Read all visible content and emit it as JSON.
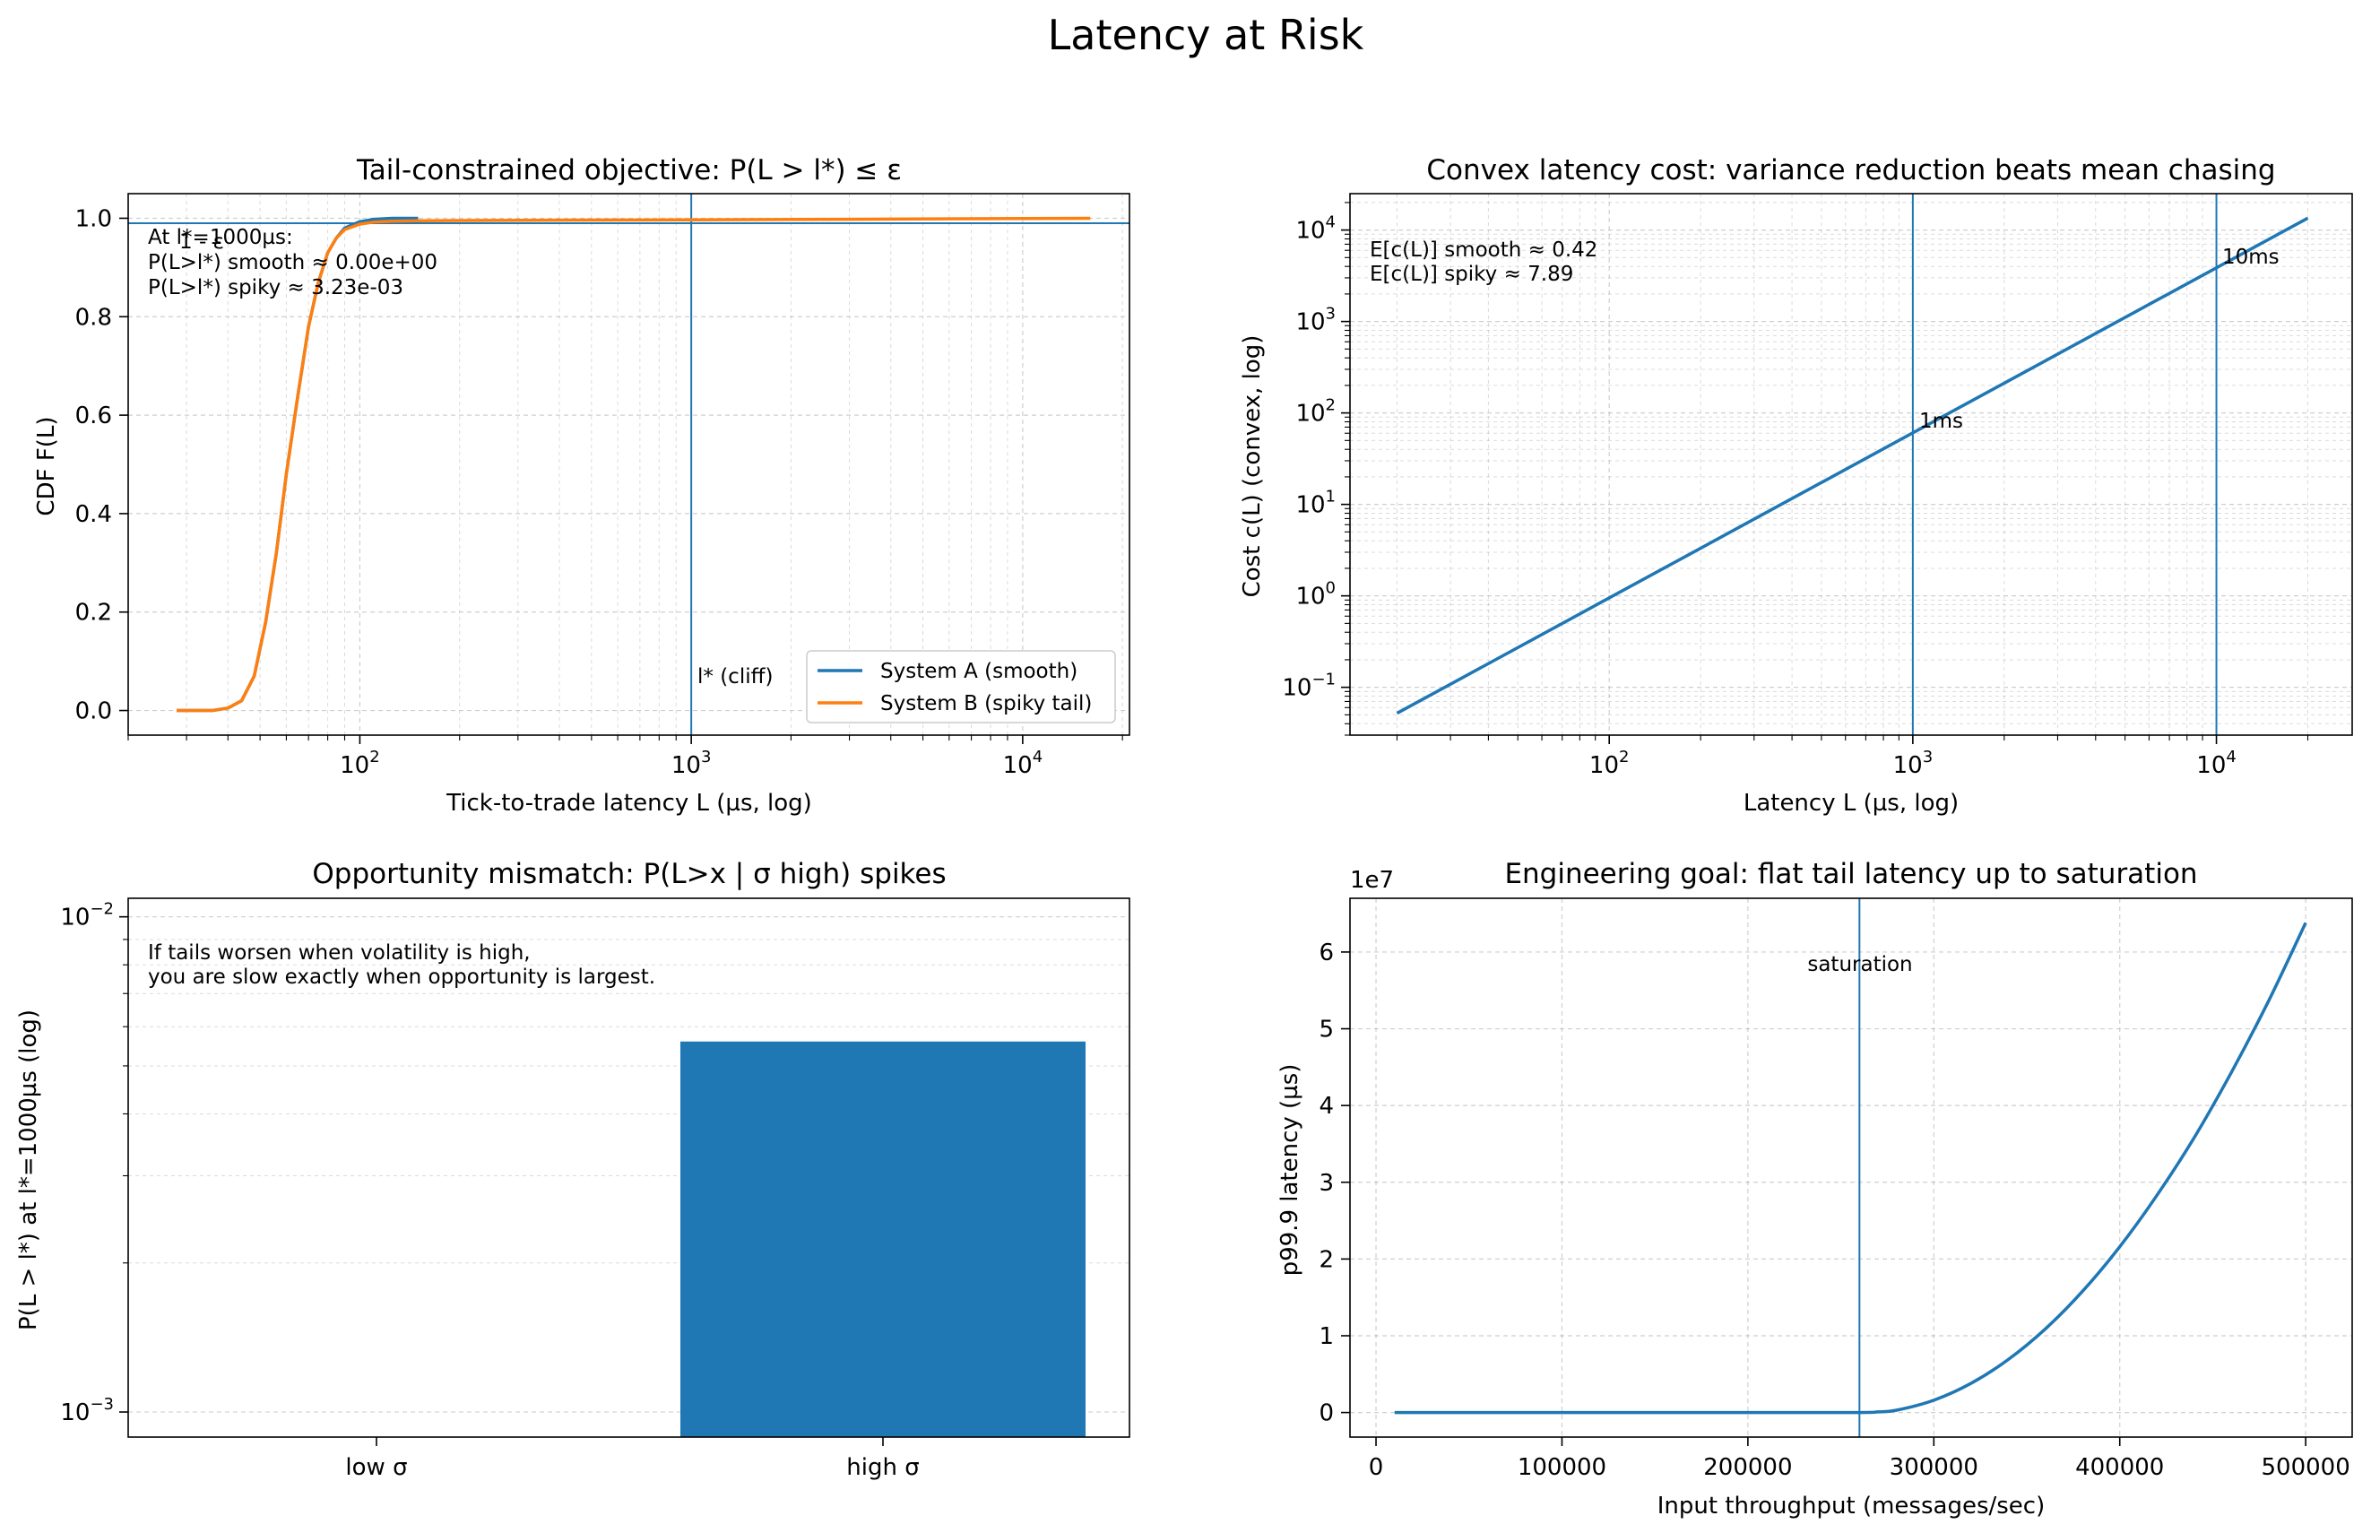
{
  "figure": {
    "title": "Latency at Risk"
  },
  "colors": {
    "blue": "#1f77b4",
    "orange": "#ff7f0e"
  },
  "chart_data": [
    {
      "id": "cdf",
      "type": "line",
      "title": "Tail-constrained objective:  P(L > l*) ≤ ε",
      "xlabel": "Tick-to-trade latency L (µs, log)",
      "ylabel": "CDF  F(L)",
      "xscale": "log",
      "xlim": [
        20,
        21000
      ],
      "ylim": [
        -0.05,
        1.05
      ],
      "yticks": [
        "0.0",
        "0.2",
        "0.4",
        "0.6",
        "0.8",
        "1.0"
      ],
      "xticks": [
        "10^2",
        "10^3",
        "10^4"
      ],
      "grid": true,
      "legend_position": "lower right",
      "series": [
        {
          "name": "System A (smooth)",
          "color": "#1f77b4",
          "x": [
            28,
            30,
            33,
            36,
            40,
            44,
            48,
            52,
            56,
            60,
            65,
            70,
            75,
            80,
            85,
            90,
            100,
            110,
            125,
            150
          ],
          "y": [
            0.0,
            0.0,
            0.0,
            0.0,
            0.005,
            0.02,
            0.07,
            0.18,
            0.32,
            0.48,
            0.64,
            0.78,
            0.87,
            0.93,
            0.96,
            0.98,
            0.993,
            0.998,
            1.0,
            1.0
          ]
        },
        {
          "name": "System B (spiky tail)",
          "color": "#ff7f0e",
          "x": [
            28,
            30,
            33,
            36,
            40,
            44,
            48,
            52,
            56,
            60,
            65,
            70,
            75,
            80,
            85,
            90,
            100,
            110,
            125,
            150,
            300,
            1000,
            3000,
            10000,
            16000
          ],
          "y": [
            0.0,
            0.0,
            0.0,
            0.0,
            0.005,
            0.02,
            0.07,
            0.18,
            0.32,
            0.48,
            0.64,
            0.78,
            0.87,
            0.93,
            0.96,
            0.977,
            0.988,
            0.992,
            0.994,
            0.995,
            0.996,
            0.9968,
            0.998,
            0.9995,
            1.0
          ]
        }
      ],
      "hline": {
        "y": 0.99,
        "label": "1 - ε"
      },
      "vline": {
        "x": 1000,
        "label": "l* (cliff)"
      },
      "annotation": [
        "At l*=1000µs:",
        "P(L>l*)  smooth ≈ 0.00e+00",
        "P(L>l*)  spiky  ≈ 3.23e-03"
      ]
    },
    {
      "id": "cost",
      "type": "line",
      "title": "Convex latency cost: variance reduction beats mean chasing",
      "xlabel": "Latency L (µs, log)",
      "ylabel": "Cost  c(L)  (convex, log)",
      "xscale": "log",
      "yscale": "log",
      "xlim": [
        14,
        28000
      ],
      "ylim": [
        0.03,
        25000
      ],
      "xticks": [
        "10^2",
        "10^3",
        "10^4"
      ],
      "yticks": [
        "10^-1",
        "10^0",
        "10^1",
        "10^2",
        "10^3",
        "10^4"
      ],
      "grid": true,
      "series": [
        {
          "name": "",
          "color": "#1f77b4",
          "x": [
            20,
            20000
          ],
          "y": [
            0.052,
            13500
          ]
        }
      ],
      "vlines": [
        {
          "x": 1000,
          "label": "1ms"
        },
        {
          "x": 10000,
          "label": "10ms"
        }
      ],
      "annotation": [
        "E[c(L)] smooth ≈ 0.42",
        "E[c(L)] spiky  ≈ 7.89"
      ]
    },
    {
      "id": "mismatch",
      "type": "bar",
      "title": "Opportunity mismatch: P(L>x | σ high) spikes",
      "ylabel": "P(L > l*)  at l*=1000µs (log)",
      "yscale": "log",
      "ylim": [
        0.00089,
        0.0109
      ],
      "yticks": [
        "10^-2",
        "10^-3"
      ],
      "categories": [
        "low σ",
        "high σ"
      ],
      "values": [
        0.0,
        0.0056
      ],
      "color": "#1f77b4",
      "grid": true,
      "annotation": [
        "If tails worsen when volatility is high,",
        "you are slow exactly when opportunity is largest."
      ]
    },
    {
      "id": "throughput",
      "type": "line",
      "title": "Engineering goal: flat tail latency up to saturation",
      "xlabel": "Input throughput (messages/sec)",
      "ylabel": "p99.9 latency (µs)",
      "offset_label": "1e7",
      "xlim": [
        -14000,
        525000
      ],
      "ylim": [
        -3200000,
        67000000
      ],
      "xticks": [
        "0",
        "100000",
        "200000",
        "300000",
        "400000",
        "500000"
      ],
      "yticks": [
        "0",
        "1",
        "2",
        "3",
        "4",
        "5",
        "6"
      ],
      "grid": true,
      "series": [
        {
          "name": "",
          "color": "#1f77b4",
          "x": [
            10000,
            100000,
            200000,
            260000,
            270000,
            280000,
            300000,
            320000,
            340000,
            360000,
            380000,
            400000,
            420000,
            440000,
            460000,
            480000,
            500000
          ],
          "y": [
            0,
            0,
            0,
            0,
            80000,
            300000,
            1600000,
            3800000,
            6900000,
            10900000,
            15800000,
            21600000,
            28300000,
            35800000,
            44300000,
            53600000,
            63800000
          ]
        }
      ],
      "vline": {
        "x": 260000,
        "label": "saturation"
      }
    }
  ]
}
